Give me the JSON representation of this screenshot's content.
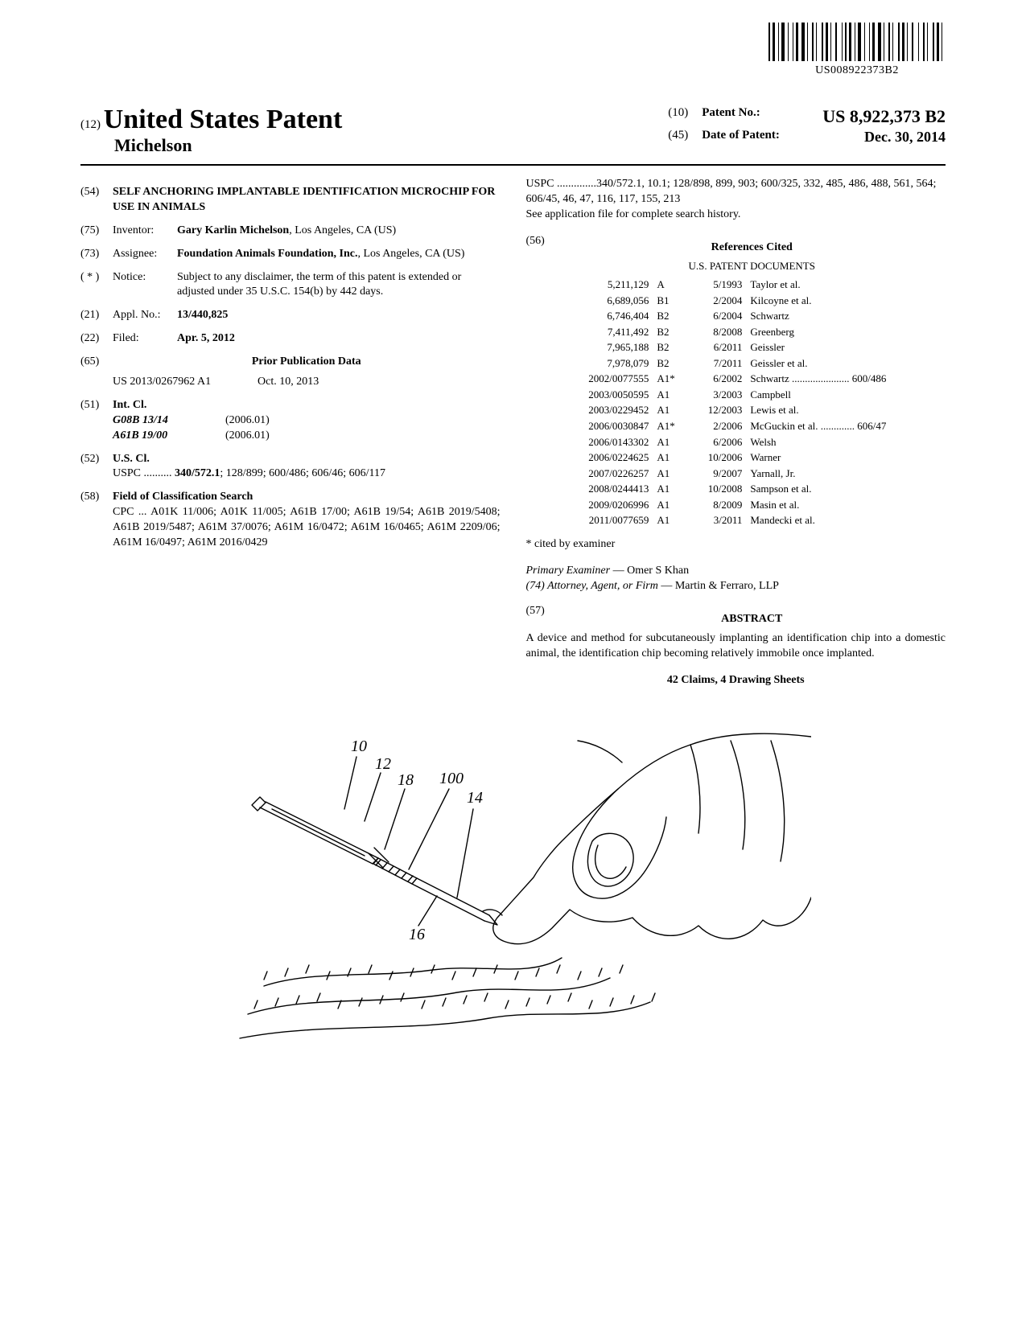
{
  "barcode": {
    "number_text": "US008922373B2",
    "bar_widths": [
      2,
      1,
      3,
      2,
      1,
      1,
      4,
      2,
      1,
      3,
      1,
      1,
      3,
      2,
      4,
      1,
      1,
      3,
      2,
      1,
      1,
      4,
      2,
      1,
      3,
      1,
      1,
      3,
      2,
      4,
      1,
      1,
      2,
      1,
      3,
      2,
      1,
      1,
      4,
      2,
      1,
      3,
      1,
      1,
      3,
      2,
      4,
      1,
      1,
      3,
      2,
      1,
      1,
      4,
      2,
      1,
      3,
      1,
      1,
      3,
      2,
      4,
      1,
      3,
      2,
      1,
      1,
      4,
      2,
      1,
      3,
      1,
      1,
      3
    ]
  },
  "header": {
    "doc_kind_num": "(12)",
    "doc_kind": "United States Patent",
    "inventor_line": "Michelson",
    "patent_no_num": "(10)",
    "patent_no_label": "Patent No.:",
    "patent_no": "US 8,922,373 B2",
    "date_num": "(45)",
    "date_label": "Date of Patent:",
    "date": "Dec. 30, 2014"
  },
  "left": {
    "title_num": "(54)",
    "title": "SELF ANCHORING IMPLANTABLE IDENTIFICATION MICROCHIP FOR USE IN ANIMALS",
    "inventor_num": "(75)",
    "inventor_label": "Inventor:",
    "inventor": "Gary Karlin Michelson, Los Angeles, CA (US)",
    "inventor_name": "Gary Karlin Michelson",
    "inventor_loc": ", Los Angeles, CA (US)",
    "assignee_num": "(73)",
    "assignee_label": "Assignee:",
    "assignee_name": "Foundation Animals Foundation, Inc.",
    "assignee_loc": ", Los Angeles, CA (US)",
    "notice_num": "( * )",
    "notice_label": "Notice:",
    "notice": "Subject to any disclaimer, the term of this patent is extended or adjusted under 35 U.S.C. 154(b) by 442 days.",
    "appl_num": "(21)",
    "appl_label": "Appl. No.:",
    "appl_val": "13/440,825",
    "filed_num": "(22)",
    "filed_label": "Filed:",
    "filed_val": "Apr. 5, 2012",
    "prior_pub_num": "(65)",
    "prior_pub_head": "Prior Publication Data",
    "prior_pub_id": "US 2013/0267962 A1",
    "prior_pub_date": "Oct. 10, 2013",
    "intcl_num": "(51)",
    "intcl_head": "Int. Cl.",
    "intcl_rows": [
      {
        "code": "G08B 13/14",
        "ver": "(2006.01)"
      },
      {
        "code": "A61B 19/00",
        "ver": "(2006.01)"
      }
    ],
    "uscl_num": "(52)",
    "uscl_head": "U.S. Cl.",
    "uscl_lead": "USPC ..........",
    "uscl_bold": "340/572.1",
    "uscl_rest": "; 128/899; 600/486; 606/46; 606/117",
    "field_num": "(58)",
    "field_head": "Field of Classification Search",
    "cpc_lead": "CPC ...",
    "cpc": "A01K 11/006; A01K 11/005; A61B 17/00; A61B 19/54; A61B 2019/5408; A61B 2019/5487; A61M 37/0076; A61M 16/0472; A61M 16/0465; A61M 2209/06; A61M 16/0497; A61M 2016/0429"
  },
  "right": {
    "uspc_lead": "USPC ..............",
    "uspc": "340/572.1, 10.1; 128/898, 899, 903; 600/325, 332, 485, 486, 488, 561, 564; 606/45, 46, 47, 116, 117, 155, 213",
    "see_app": "See application file for complete search history.",
    "refs_num": "(56)",
    "refs_head": "References Cited",
    "refs_sub": "U.S. PATENT DOCUMENTS",
    "refs": [
      {
        "no": "5,211,129",
        "code": "A",
        "date": "5/1993",
        "inv": "Taylor et al."
      },
      {
        "no": "6,689,056",
        "code": "B1",
        "date": "2/2004",
        "inv": "Kilcoyne et al."
      },
      {
        "no": "6,746,404",
        "code": "B2",
        "date": "6/2004",
        "inv": "Schwartz"
      },
      {
        "no": "7,411,492",
        "code": "B2",
        "date": "8/2008",
        "inv": "Greenberg"
      },
      {
        "no": "7,965,188",
        "code": "B2",
        "date": "6/2011",
        "inv": "Geissler"
      },
      {
        "no": "7,978,079",
        "code": "B2",
        "date": "7/2011",
        "inv": "Geissler et al."
      },
      {
        "no": "2002/0077555",
        "code": "A1*",
        "date": "6/2002",
        "inv": "Schwartz ...................... 600/486"
      },
      {
        "no": "2003/0050595",
        "code": "A1",
        "date": "3/2003",
        "inv": "Campbell"
      },
      {
        "no": "2003/0229452",
        "code": "A1",
        "date": "12/2003",
        "inv": "Lewis et al."
      },
      {
        "no": "2006/0030847",
        "code": "A1*",
        "date": "2/2006",
        "inv": "McGuckin et al. ............. 606/47"
      },
      {
        "no": "2006/0143302",
        "code": "A1",
        "date": "6/2006",
        "inv": "Welsh"
      },
      {
        "no": "2006/0224625",
        "code": "A1",
        "date": "10/2006",
        "inv": "Warner"
      },
      {
        "no": "2007/0226257",
        "code": "A1",
        "date": "9/2007",
        "inv": "Yarnall, Jr."
      },
      {
        "no": "2008/0244413",
        "code": "A1",
        "date": "10/2008",
        "inv": "Sampson et al."
      },
      {
        "no": "2009/0206996",
        "code": "A1",
        "date": "8/2009",
        "inv": "Masin et al."
      },
      {
        "no": "2011/0077659",
        "code": "A1",
        "date": "3/2011",
        "inv": "Mandecki et al."
      }
    ],
    "cited_by": "* cited by examiner",
    "examiner_label": "Primary Examiner",
    "examiner": " — Omer S Khan",
    "attorney_label": "(74) Attorney, Agent, or Firm",
    "attorney": " — Martin & Ferraro, LLP",
    "abstract_num": "(57)",
    "abstract_head": "ABSTRACT",
    "abstract": "A device and method for subcutaneously implanting an identification chip into a domestic animal, the identification chip becoming relatively immobile once implanted.",
    "claims": "42 Claims, 4 Drawing Sheets"
  },
  "figure": {
    "labels": [
      "10",
      "12",
      "18",
      "100",
      "14",
      "16"
    ],
    "stroke": "#000000",
    "stroke_width": 1.4
  }
}
